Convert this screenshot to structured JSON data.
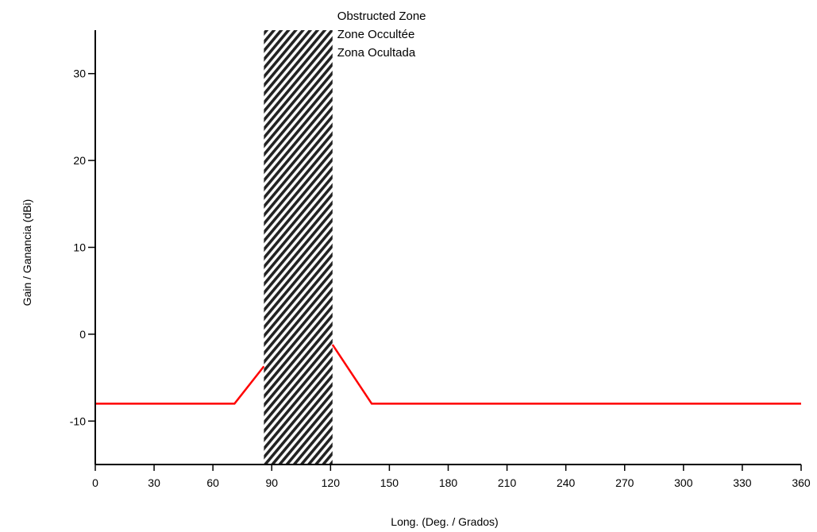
{
  "chart_data": {
    "type": "line",
    "title": "",
    "xlabel": "Long. (Deg. / Grados)",
    "ylabel": "Gain / Ganancia (dBi)",
    "xlim": [
      0,
      360
    ],
    "ylim": [
      -15,
      35
    ],
    "xticks": [
      0,
      30,
      60,
      90,
      120,
      150,
      180,
      210,
      240,
      270,
      300,
      330,
      360
    ],
    "yticks": [
      -10,
      0,
      10,
      20,
      30
    ],
    "grid": false,
    "series": [
      {
        "color": "#ff0000",
        "segments": [
          {
            "x": [
              0,
              71,
              86
            ],
            "y": [
              -8,
              -8,
              -3.7
            ]
          },
          {
            "x": [
              121,
              141,
              360
            ],
            "y": [
              -1.2,
              -8,
              -8
            ]
          }
        ]
      }
    ],
    "obstructed_zone": {
      "x_range": [
        86,
        121
      ],
      "pattern": "hatched",
      "labels": [
        "Obstructed Zone",
        "Zone Occultée",
        "Zona Ocultada"
      ]
    }
  }
}
